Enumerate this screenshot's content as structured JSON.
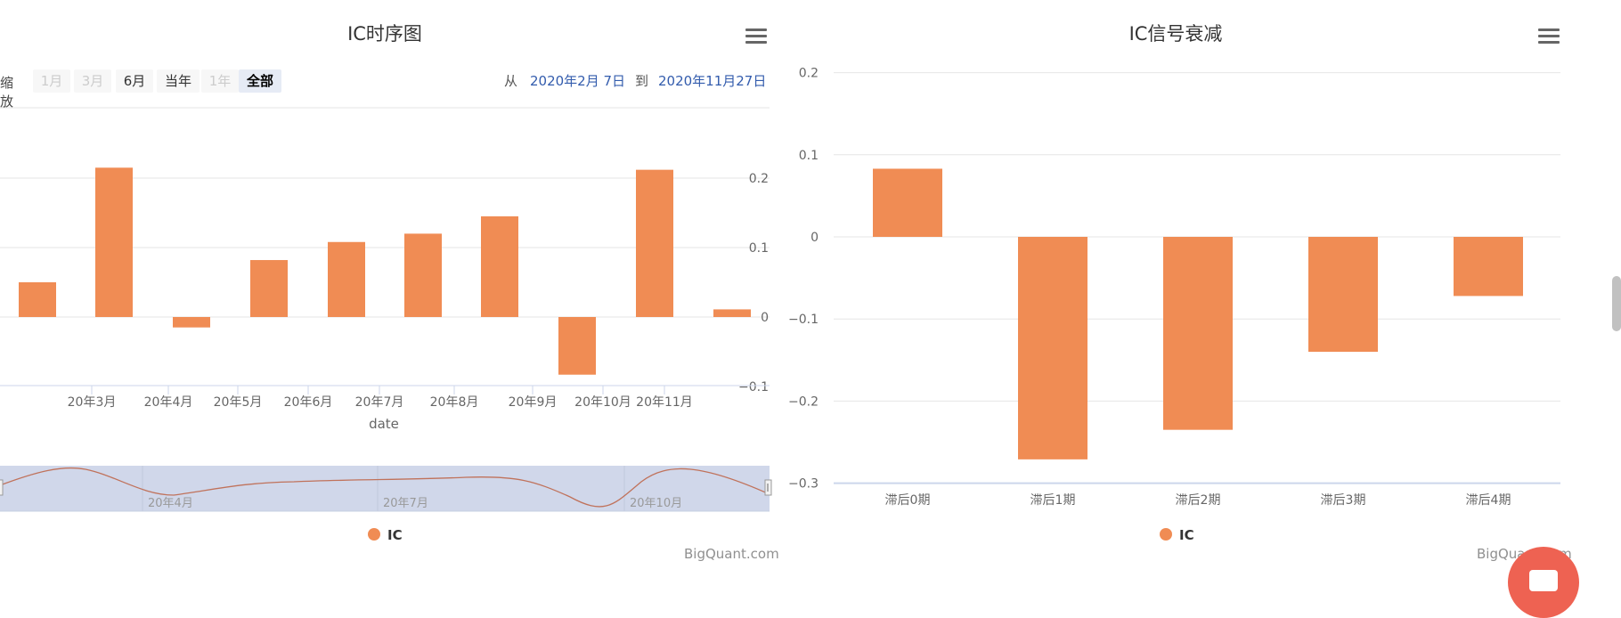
{
  "left": {
    "title": "IC时序图",
    "range_selector": {
      "zoom_label": "缩放",
      "buttons": [
        {
          "label": "1月",
          "state": "disabled"
        },
        {
          "label": "3月",
          "state": "disabled"
        },
        {
          "label": "6月",
          "state": "normal"
        },
        {
          "label": "当年",
          "state": "normal"
        },
        {
          "label": "1年",
          "state": "disabled"
        },
        {
          "label": "全部",
          "state": "selected"
        }
      ],
      "from_label": "从",
      "from_value": "2020年2月 7日",
      "to_label": "到",
      "to_value": "2020年11月27日"
    },
    "legend": "IC",
    "credit": "BigQuant.com",
    "navigator_labels": [
      "20年4月",
      "20年7月",
      "20年10月"
    ]
  },
  "right": {
    "title": "IC信号衰减",
    "legend": "IC",
    "credit": "BigQuant.com"
  },
  "colors": {
    "bar": "#f08c54",
    "accent": "#335cad",
    "navigator_fill": "#d0d7ea",
    "float_button": "#ee6252"
  },
  "icons": {
    "menu": "hamburger-menu-icon",
    "float": "chat-icon"
  },
  "chart_data": [
    {
      "type": "bar",
      "title": "IC时序图",
      "xlabel": "date",
      "ylabel": "",
      "ylim": [
        -0.1,
        0.2
      ],
      "yticks": [
        -0.1,
        0,
        0.1,
        0.2
      ],
      "ytick_labels": [
        "−0.1",
        "0",
        "0.1",
        "0.2"
      ],
      "y_axis_side": "right",
      "x_tick_labels": [
        "20年3月",
        "20年4月",
        "20年5月",
        "20年6月",
        "20年7月",
        "20年8月",
        "20年9月",
        "20年10月",
        "20年11月"
      ],
      "x": [
        "2020-02",
        "2020-03",
        "2020-04",
        "2020-05",
        "2020-06",
        "2020-07",
        "2020-08",
        "2020-09",
        "2020-10",
        "2020-11"
      ],
      "series": [
        {
          "name": "IC",
          "values": [
            0.05,
            0.215,
            -0.015,
            0.082,
            0.108,
            0.12,
            0.145,
            -0.083,
            0.212,
            0.011
          ]
        }
      ],
      "grid": true,
      "legend_position": "bottom-center"
    },
    {
      "type": "bar",
      "title": "IC信号衰减",
      "xlabel": "",
      "ylabel": "",
      "ylim": [
        -0.3,
        0.2
      ],
      "yticks": [
        -0.3,
        -0.2,
        -0.1,
        0,
        0.1,
        0.2
      ],
      "ytick_labels": [
        "−0.3",
        "−0.2",
        "−0.1",
        "0",
        "0.1",
        "0.2"
      ],
      "y_axis_side": "left",
      "categories": [
        "滞后0期",
        "滞后1期",
        "滞后2期",
        "滞后3期",
        "滞后4期"
      ],
      "series": [
        {
          "name": "IC",
          "values": [
            0.083,
            -0.271,
            -0.235,
            -0.14,
            -0.072
          ]
        }
      ],
      "grid": true,
      "legend_position": "bottom-center"
    }
  ]
}
